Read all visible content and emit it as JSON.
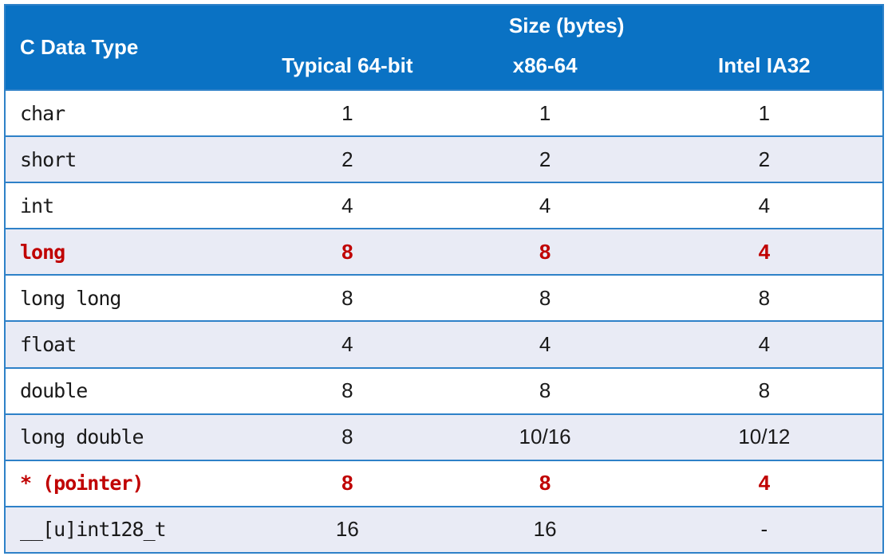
{
  "table": {
    "header": {
      "col1": "C Data Type",
      "group": "Size (bytes)",
      "columns": [
        "Typical 64-bit",
        "x86-64",
        "Intel IA32"
      ]
    },
    "rows": [
      {
        "name": "char",
        "values": [
          "1",
          "1",
          "1"
        ],
        "highlight": false
      },
      {
        "name": "short",
        "values": [
          "2",
          "2",
          "2"
        ],
        "highlight": false
      },
      {
        "name": "int",
        "values": [
          "4",
          "4",
          "4"
        ],
        "highlight": false
      },
      {
        "name": "long",
        "values": [
          "8",
          "8",
          "4"
        ],
        "highlight": true
      },
      {
        "name": "long long",
        "values": [
          "8",
          "8",
          "8"
        ],
        "highlight": false
      },
      {
        "name": "float",
        "values": [
          "4",
          "4",
          "4"
        ],
        "highlight": false
      },
      {
        "name": "double",
        "values": [
          "8",
          "8",
          "8"
        ],
        "highlight": false
      },
      {
        "name": "long double",
        "values": [
          "8",
          "10/16",
          "10/12"
        ],
        "highlight": false
      },
      {
        "name": "* (pointer)",
        "values": [
          "8",
          "8",
          "4"
        ],
        "highlight": true
      },
      {
        "name": "__[u]int128_t",
        "values": [
          "16",
          "16",
          "-"
        ],
        "highlight": false
      }
    ]
  },
  "colors": {
    "header_background": "#0a72c4",
    "border": "#2e81c8",
    "alternate_row": "#e9ebf5",
    "highlight_text": "#c00000"
  }
}
